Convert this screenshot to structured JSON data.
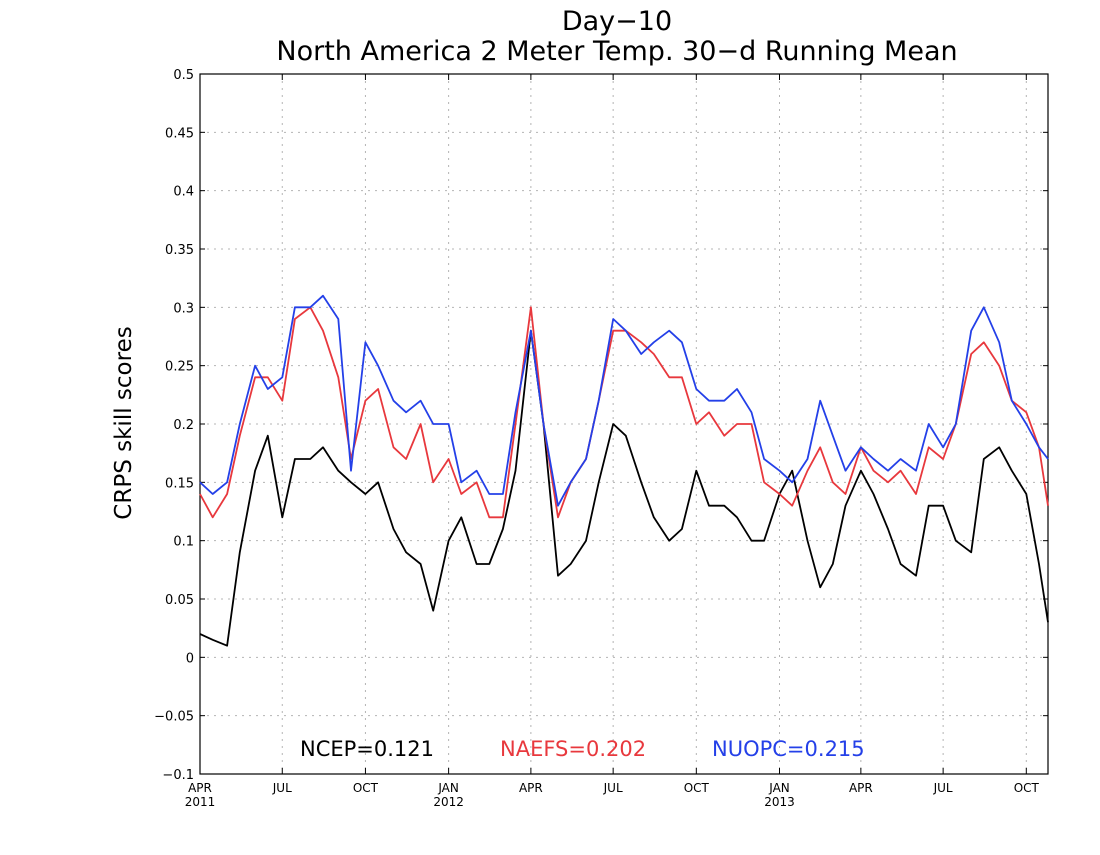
{
  "chart_data": {
    "type": "line",
    "title": "Day−10",
    "subtitle": "North America 2 Meter Temp. 30−d Running Mean",
    "ylabel": "CRPS skill scores",
    "xlabel": "",
    "ylim": [
      -0.1,
      0.5
    ],
    "y_ticks": [
      "0.5",
      "0.45",
      "0.4",
      "0.35",
      "0.3",
      "0.25",
      "0.2",
      "0.15",
      "0.1",
      "0.05",
      "0",
      "−0.05",
      "−0.1"
    ],
    "x_range": [
      "2011-04-01",
      "2013-10-25"
    ],
    "x_ticks": [
      {
        "date": "2011-04-01",
        "label": "APR",
        "year": "2011"
      },
      {
        "date": "2011-07-01",
        "label": "JUL",
        "year": ""
      },
      {
        "date": "2011-10-01",
        "label": "OCT",
        "year": ""
      },
      {
        "date": "2012-01-01",
        "label": "JAN",
        "year": "2012"
      },
      {
        "date": "2012-04-01",
        "label": "APR",
        "year": ""
      },
      {
        "date": "2012-07-01",
        "label": "JUL",
        "year": ""
      },
      {
        "date": "2012-10-01",
        "label": "OCT",
        "year": ""
      },
      {
        "date": "2013-01-01",
        "label": "JAN",
        "year": "2013"
      },
      {
        "date": "2013-04-01",
        "label": "APR",
        "year": ""
      },
      {
        "date": "2013-07-01",
        "label": "JUL",
        "year": ""
      },
      {
        "date": "2013-10-01",
        "label": "OCT",
        "year": ""
      }
    ],
    "grid": true,
    "legend_placement": "bottom",
    "x": [
      "2011-04-01",
      "2011-04-15",
      "2011-05-01",
      "2011-05-15",
      "2011-06-01",
      "2011-06-15",
      "2011-07-01",
      "2011-07-15",
      "2011-08-01",
      "2011-08-15",
      "2011-09-01",
      "2011-09-15",
      "2011-10-01",
      "2011-10-15",
      "2011-11-01",
      "2011-11-15",
      "2011-12-01",
      "2011-12-15",
      "2012-01-01",
      "2012-01-15",
      "2012-02-01",
      "2012-02-15",
      "2012-03-01",
      "2012-03-15",
      "2012-04-01",
      "2012-04-15",
      "2012-05-01",
      "2012-05-15",
      "2012-06-01",
      "2012-06-15",
      "2012-07-01",
      "2012-07-15",
      "2012-08-01",
      "2012-08-15",
      "2012-09-01",
      "2012-09-15",
      "2012-10-01",
      "2012-10-15",
      "2012-11-01",
      "2012-11-15",
      "2012-12-01",
      "2012-12-15",
      "2013-01-01",
      "2013-01-15",
      "2013-02-01",
      "2013-02-15",
      "2013-03-01",
      "2013-03-15",
      "2013-04-01",
      "2013-04-15",
      "2013-05-01",
      "2013-05-15",
      "2013-06-01",
      "2013-06-15",
      "2013-07-01",
      "2013-07-15",
      "2013-08-01",
      "2013-08-15",
      "2013-09-01",
      "2013-09-15",
      "2013-10-01",
      "2013-10-15",
      "2013-10-25"
    ],
    "series": [
      {
        "name": "NCEP",
        "color": "#000000",
        "label": "NCEP=0.121",
        "values": [
          0.02,
          0.015,
          0.01,
          0.09,
          0.16,
          0.19,
          0.12,
          0.17,
          0.17,
          0.18,
          0.16,
          0.15,
          0.14,
          0.15,
          0.11,
          0.09,
          0.08,
          0.04,
          0.1,
          0.12,
          0.08,
          0.08,
          0.11,
          0.16,
          0.28,
          0.2,
          0.07,
          0.08,
          0.1,
          0.15,
          0.2,
          0.19,
          0.15,
          0.12,
          0.1,
          0.11,
          0.16,
          0.13,
          0.13,
          0.12,
          0.1,
          0.1,
          0.14,
          0.16,
          0.1,
          0.06,
          0.08,
          0.13,
          0.16,
          0.14,
          0.11,
          0.08,
          0.07,
          0.13,
          0.13,
          0.1,
          0.09,
          0.17,
          0.18,
          0.16,
          0.14,
          0.08,
          0.03
        ]
      },
      {
        "name": "NAEFS",
        "color": "#e8383d",
        "label": "NAEFS=0.202",
        "values": [
          0.14,
          0.12,
          0.14,
          0.19,
          0.24,
          0.24,
          0.22,
          0.29,
          0.3,
          0.28,
          0.24,
          0.17,
          0.22,
          0.23,
          0.18,
          0.17,
          0.2,
          0.15,
          0.17,
          0.14,
          0.15,
          0.12,
          0.12,
          0.2,
          0.3,
          0.2,
          0.12,
          0.15,
          0.17,
          0.22,
          0.28,
          0.28,
          0.27,
          0.26,
          0.24,
          0.24,
          0.2,
          0.21,
          0.19,
          0.2,
          0.2,
          0.15,
          0.14,
          0.13,
          0.16,
          0.18,
          0.15,
          0.14,
          0.18,
          0.16,
          0.15,
          0.16,
          0.14,
          0.18,
          0.17,
          0.2,
          0.26,
          0.27,
          0.25,
          0.22,
          0.21,
          0.18,
          0.13
        ]
      },
      {
        "name": "NUOPC",
        "color": "#2440e8",
        "label": "NUOPC=0.215",
        "values": [
          0.15,
          0.14,
          0.15,
          0.2,
          0.25,
          0.23,
          0.24,
          0.3,
          0.3,
          0.31,
          0.29,
          0.16,
          0.27,
          0.25,
          0.22,
          0.21,
          0.22,
          0.2,
          0.2,
          0.15,
          0.16,
          0.14,
          0.14,
          0.21,
          0.28,
          0.2,
          0.13,
          0.15,
          0.17,
          0.22,
          0.29,
          0.28,
          0.26,
          0.27,
          0.28,
          0.27,
          0.23,
          0.22,
          0.22,
          0.23,
          0.21,
          0.17,
          0.16,
          0.15,
          0.17,
          0.22,
          0.19,
          0.16,
          0.18,
          0.17,
          0.16,
          0.17,
          0.16,
          0.2,
          0.18,
          0.2,
          0.28,
          0.3,
          0.27,
          0.22,
          0.2,
          0.18,
          0.17
        ]
      }
    ]
  }
}
